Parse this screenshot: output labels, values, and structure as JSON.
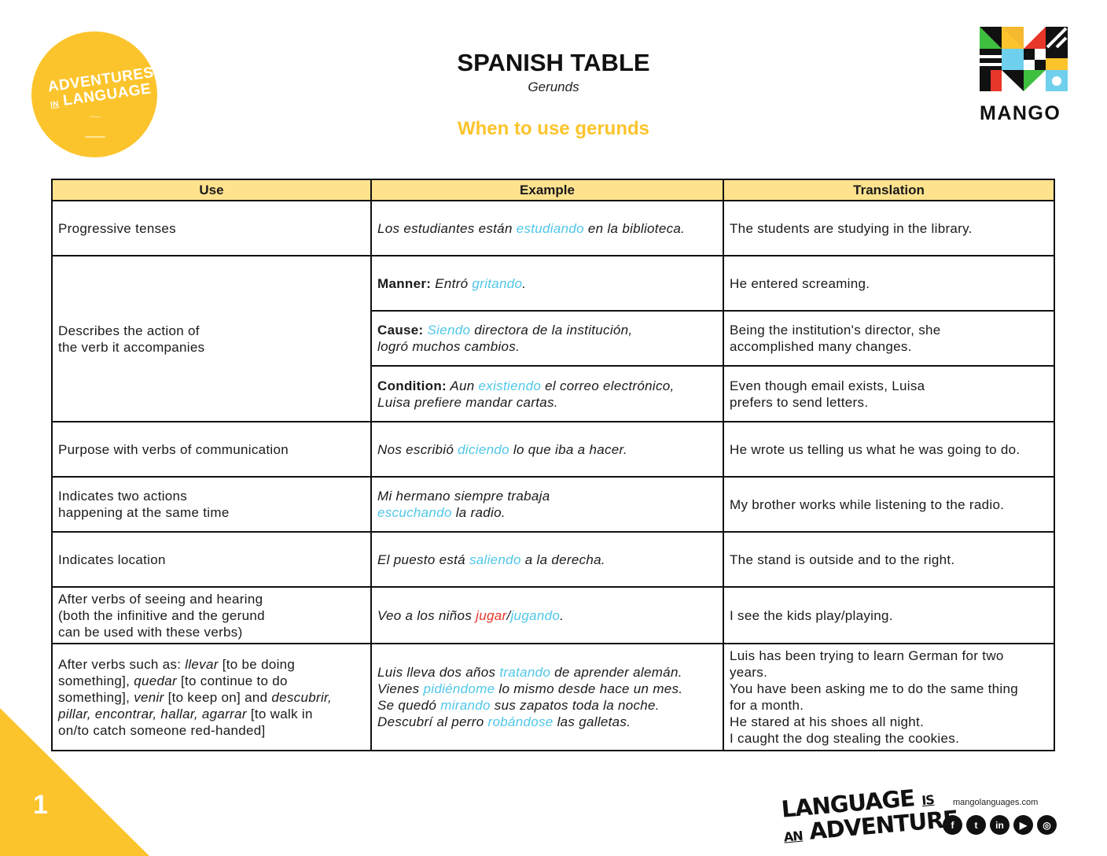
{
  "header": {
    "title": "SPANISH TABLE",
    "subtitle": "Gerunds",
    "section_title": "When to use gerunds",
    "badge_logo": "ADVENTURES IN LANGUAGE",
    "brand_logo": "MANGO"
  },
  "colors": {
    "accent_yellow": "#fcc42c",
    "header_fill": "#fee28e",
    "gerund_blue": "#4fc7e8",
    "infinitive_red": "#e8362a"
  },
  "table": {
    "columns": [
      "Use",
      "Example",
      "Translation"
    ],
    "rows": [
      {
        "use": [
          {
            "t": "Progressive tenses"
          }
        ],
        "example": [
          {
            "t": "Los estudiantes están "
          },
          {
            "t": "estudiando",
            "s": "g"
          },
          {
            "t": " en la biblioteca."
          }
        ],
        "translation": "The students are studying in the library."
      },
      {
        "use": [
          {
            "t": "Describes the action of\nthe verb it accompanies"
          }
        ],
        "rowspan": 3,
        "example": [
          {
            "t": "Manner:",
            "s": "b"
          },
          {
            "t": " Entró "
          },
          {
            "t": "gritando",
            "s": "g"
          },
          {
            "t": "."
          }
        ],
        "translation": "He entered screaming."
      },
      {
        "example": [
          {
            "t": "Cause:",
            "s": "b"
          },
          {
            "t": " "
          },
          {
            "t": "Siendo",
            "s": "g"
          },
          {
            "t": " directora de la institución,\nlogró muchos cambios."
          }
        ],
        "translation": "Being the institution's director, she\naccomplished many changes."
      },
      {
        "example": [
          {
            "t": "Condition:",
            "s": "b"
          },
          {
            "t": " Aun "
          },
          {
            "t": "existiendo",
            "s": "g"
          },
          {
            "t": " el correo electrónico,\nLuisa prefiere mandar cartas."
          }
        ],
        "translation": "Even though email exists, Luisa\nprefers to send letters."
      },
      {
        "use": [
          {
            "t": "Purpose with verbs of communication"
          }
        ],
        "example": [
          {
            "t": "Nos escribió "
          },
          {
            "t": "diciendo",
            "s": "g"
          },
          {
            "t": " lo que iba a hacer."
          }
        ],
        "translation": "He wrote us telling us what he was going to do."
      },
      {
        "use": [
          {
            "t": "Indicates two actions\nhappening at the same time"
          }
        ],
        "example": [
          {
            "t": "Mi hermano siempre trabaja\n"
          },
          {
            "t": "escuchando",
            "s": "g"
          },
          {
            "t": " la radio."
          }
        ],
        "translation": "My brother works while listening to the radio."
      },
      {
        "use": [
          {
            "t": "Indicates location"
          }
        ],
        "example": [
          {
            "t": "El puesto está "
          },
          {
            "t": "saliendo",
            "s": "g"
          },
          {
            "t": " a la derecha."
          }
        ],
        "translation": "The stand is outside and to the right."
      },
      {
        "use": [
          {
            "t": "After verbs of seeing and hearing\n(both the infinitive and the gerund\ncan be used with these verbs)"
          }
        ],
        "example": [
          {
            "t": "Veo a los niños "
          },
          {
            "t": "jugar",
            "s": "r"
          },
          {
            "t": "/"
          },
          {
            "t": "jugando",
            "s": "g"
          },
          {
            "t": "."
          }
        ],
        "translation": "I see the kids play/playing."
      },
      {
        "use": [
          {
            "t": "After verbs such as: "
          },
          {
            "t": "llevar",
            "s": "i"
          },
          {
            "t": " [to be doing\nsomething], "
          },
          {
            "t": "quedar",
            "s": "i"
          },
          {
            "t": " [to continue to do\nsomething], "
          },
          {
            "t": "venir",
            "s": "i"
          },
          {
            "t": " [to keep on] and "
          },
          {
            "t": "descubrir,\npillar, encontrar, hallar, agarrar",
            "s": "i"
          },
          {
            "t": " [to walk in\non/to catch someone red-handed]"
          }
        ],
        "example": [
          {
            "t": "Luis lleva dos años "
          },
          {
            "t": "tratando",
            "s": "g"
          },
          {
            "t": " de aprender alemán.\nVienes "
          },
          {
            "t": "pidiéndome",
            "s": "g"
          },
          {
            "t": " lo mismo desde hace un mes.\nSe quedó "
          },
          {
            "t": "mirando",
            "s": "g"
          },
          {
            "t": " sus zapatos toda la noche.\nDescubrí al perro "
          },
          {
            "t": "robándose",
            "s": "g"
          },
          {
            "t": " las galletas."
          }
        ],
        "translation": "Luis has been trying to learn German for two\nyears.\nYou have been asking me to do the same thing\nfor a month.\nHe stared at his shoes all night.\nI caught the dog stealing the cookies."
      }
    ]
  },
  "footer": {
    "page_number": "1",
    "slogan_line1": "LANGUAGE",
    "slogan_is": "IS",
    "slogan_an": "AN",
    "slogan_line2": "ADVENTURE",
    "website": "mangolanguages.com",
    "social": [
      {
        "icon": "facebook-icon",
        "glyph": "f"
      },
      {
        "icon": "twitter-icon",
        "glyph": "t"
      },
      {
        "icon": "linkedin-icon",
        "glyph": "in"
      },
      {
        "icon": "youtube-icon",
        "glyph": "▶"
      },
      {
        "icon": "instagram-icon",
        "glyph": "◎"
      }
    ]
  }
}
